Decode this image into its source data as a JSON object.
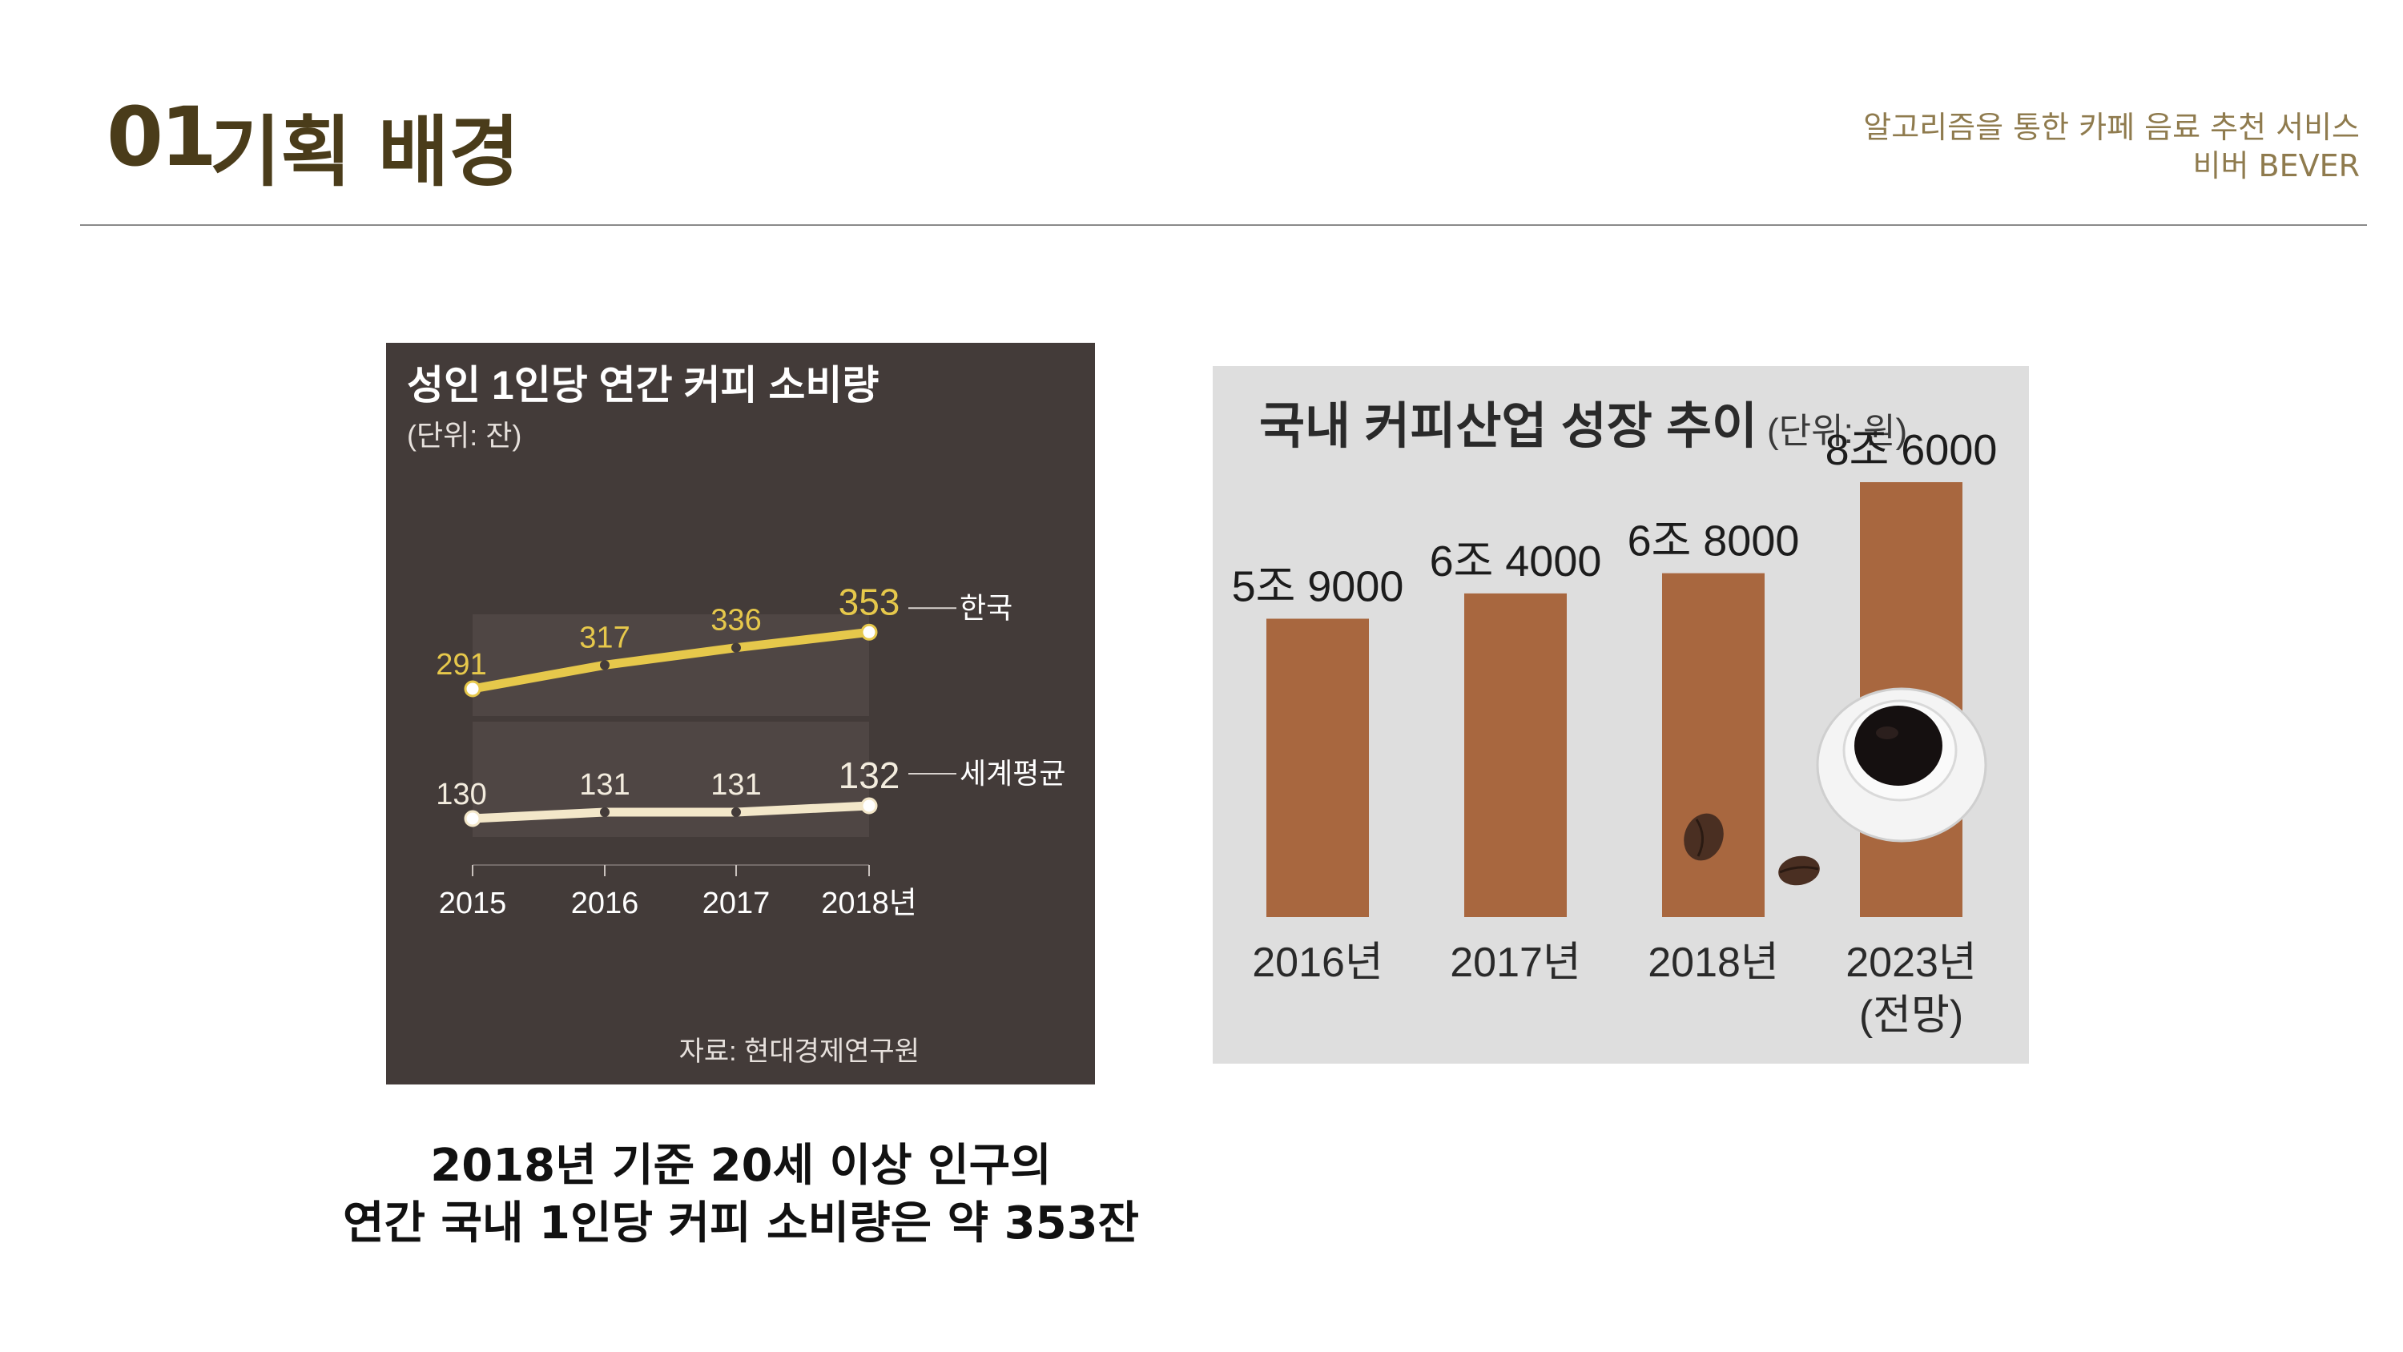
{
  "header": {
    "number": "01",
    "title": "기획 배경",
    "subtitle_line1": "알고리즘을 통한 카페 음료 추천 서비스",
    "subtitle_line2": "비버 BEVER"
  },
  "caption": {
    "line1": "2018년 기준 20세 이상 인구의",
    "line2": "연간 국내 1인당 커피 소비량은 약 353잔"
  },
  "colors": {
    "title": "#4a3c1a",
    "subtitle": "#8f7b4e",
    "chart1_bg": "#433b39",
    "korea_line": "#e6c84b",
    "world_line": "#f3e7c9",
    "chart2_bg": "#dedede",
    "bar": "#a8673f"
  },
  "chart_data": [
    {
      "type": "line",
      "title": "성인 1인당 연간 커피 소비량",
      "subtitle": "(단위: 잔)",
      "source": "자료: 현대경제연구원",
      "categories": [
        "2015",
        "2016",
        "2017",
        "2018년"
      ],
      "series": [
        {
          "name": "한국",
          "values": [
            291,
            317,
            336,
            353
          ]
        },
        {
          "name": "세계평균",
          "values": [
            130,
            131,
            131,
            132
          ]
        }
      ],
      "grid": false
    },
    {
      "type": "bar",
      "title": "국내 커피산업 성장 추이",
      "subtitle": "(단위: 원)",
      "categories": [
        "2016년",
        "2017년",
        "2018년",
        "2023년"
      ],
      "category_notes": [
        "",
        "",
        "",
        "(전망)"
      ],
      "values": [
        59000,
        64000,
        68000,
        86000
      ],
      "value_labels": [
        "5조 9000",
        "6조 4000",
        "6조 8000",
        "8조 6000"
      ],
      "grid": false
    }
  ]
}
